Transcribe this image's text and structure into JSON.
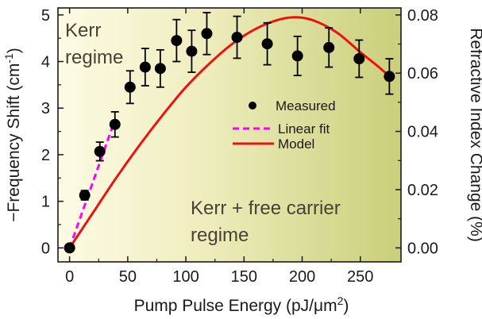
{
  "chart_data": {
    "type": "scatter",
    "xlabel": "Pump Pulse Energy (pJ/μm",
    "xlabel_sup": "2",
    "xlabel_end": ")",
    "ylabel": "−Frequency Shift (cm",
    "ylabel_sup": "-1",
    "ylabel_end": ")",
    "y2label": "Refractive Index Change (%)",
    "xlim": [
      -10,
      285
    ],
    "ylim": [
      -0.3,
      5.15
    ],
    "y2lim": [
      -0.0048,
      0.0824
    ],
    "x_ticks": [
      "0",
      "50",
      "100",
      "150",
      "200",
      "250"
    ],
    "y_ticks": [
      "0",
      "1",
      "2",
      "3",
      "4",
      "5"
    ],
    "y2_ticks": [
      "0.00",
      "0.02",
      "0.04",
      "0.06",
      "0.08"
    ],
    "grid": false,
    "legend_position": "center-right",
    "background_gradient": [
      "#fdfbe4",
      "#c9cf7a"
    ],
    "annotations": [
      {
        "id": "kerr",
        "lines": [
          "Kerr",
          "regime"
        ]
      },
      {
        "id": "kerr-free-carrier",
        "lines": [
          "Kerr + free carrier",
          "regime"
        ]
      }
    ],
    "series": [
      {
        "name": "Measured",
        "kind": "scatter-errorbar",
        "color": "#000000",
        "points": [
          {
            "x": 0,
            "y": 0.0,
            "err": 0.0
          },
          {
            "x": 13,
            "y": 1.13,
            "err": 0.1
          },
          {
            "x": 26,
            "y": 2.07,
            "err": 0.2
          },
          {
            "x": 39,
            "y": 2.65,
            "err": 0.27
          },
          {
            "x": 52,
            "y": 3.45,
            "err": 0.35
          },
          {
            "x": 65,
            "y": 3.88,
            "err": 0.4
          },
          {
            "x": 78,
            "y": 3.85,
            "err": 0.4
          },
          {
            "x": 92,
            "y": 4.45,
            "err": 0.45
          },
          {
            "x": 105,
            "y": 4.22,
            "err": 0.45
          },
          {
            "x": 118,
            "y": 4.6,
            "err": 0.45
          },
          {
            "x": 144,
            "y": 4.52,
            "err": 0.45
          },
          {
            "x": 170,
            "y": 4.38,
            "err": 0.45
          },
          {
            "x": 196,
            "y": 4.12,
            "err": 0.42
          },
          {
            "x": 223,
            "y": 4.3,
            "err": 0.42
          },
          {
            "x": 249,
            "y": 4.06,
            "err": 0.4
          },
          {
            "x": 275,
            "y": 3.68,
            "err": 0.38
          }
        ]
      },
      {
        "name": "Linear fit",
        "kind": "line",
        "dash": true,
        "color": "#ff00ff",
        "x": [
          0,
          39
        ],
        "y": [
          0.0,
          2.75
        ]
      },
      {
        "name": "Model",
        "kind": "line",
        "color": "#ee1111",
        "x": [
          0,
          20,
          40,
          60,
          80,
          100,
          120,
          140,
          160,
          180,
          195,
          210,
          230,
          250,
          265,
          275
        ],
        "y": [
          0.0,
          0.75,
          1.5,
          2.2,
          2.85,
          3.45,
          3.95,
          4.38,
          4.7,
          4.9,
          4.95,
          4.88,
          4.62,
          4.2,
          3.9,
          3.68
        ]
      }
    ]
  }
}
